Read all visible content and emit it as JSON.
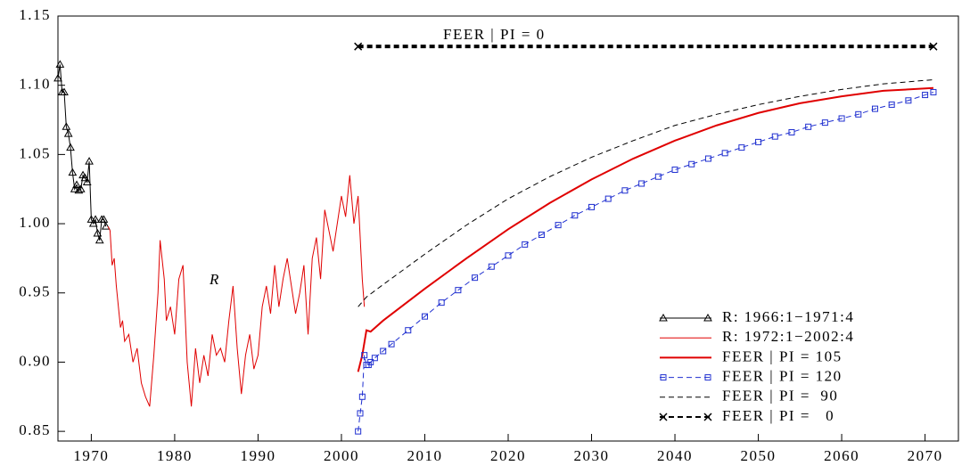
{
  "chart_data": {
    "type": "line",
    "xlim": [
      1966,
      2074
    ],
    "ylim": [
      0.843,
      1.15
    ],
    "xticks": [
      1970,
      1980,
      1990,
      2000,
      2010,
      2020,
      2030,
      2040,
      2050,
      2060,
      2070
    ],
    "yticks": [
      {
        "value": 0.85,
        "label": "0.85"
      },
      {
        "value": 0.9,
        "label": "0.90"
      },
      0.95,
      {
        "value": 1.0,
        "label": "1.00"
      },
      1.05,
      {
        "value": 1.1,
        "label": "1.10"
      },
      1.15
    ],
    "legend": "lower right",
    "annotations": [
      "R",
      "FEER | PI = 0"
    ],
    "series": [
      {
        "name": "R: 1966:1−1971:4",
        "color": "#000000",
        "marker": "triangle",
        "width": 1,
        "dash": false,
        "x": [
          1966,
          1966.25,
          1966.5,
          1966.75,
          1967,
          1967.25,
          1967.5,
          1967.75,
          1968,
          1968.25,
          1968.5,
          1968.75,
          1969,
          1969.25,
          1969.5,
          1969.75,
          1970,
          1970.25,
          1970.5,
          1970.75,
          1971,
          1971.25,
          1971.5,
          1971.75
        ],
        "values": [
          1.105,
          1.115,
          1.095,
          1.095,
          1.07,
          1.065,
          1.055,
          1.037,
          1.025,
          1.028,
          1.024,
          1.025,
          1.035,
          1.033,
          1.03,
          1.045,
          1.003,
          1.0,
          1.003,
          0.993,
          0.988,
          1.003,
          1.003,
          0.998
        ]
      },
      {
        "name": "R: 1972:1−2002:4",
        "color": "#e00000",
        "marker": null,
        "width": 1,
        "dash": false,
        "x": [
          1972,
          1972.25,
          1972.5,
          1972.75,
          1973,
          1973.25,
          1973.5,
          1973.75,
          1974,
          1974.5,
          1975,
          1975.5,
          1976,
          1976.5,
          1977,
          1977.5,
          1978,
          1978.25,
          1978.75,
          1979,
          1979.5,
          1980,
          1980.5,
          1981,
          1981.5,
          1982,
          1982.5,
          1983,
          1983.5,
          1984,
          1984.5,
          1985,
          1985.5,
          1986,
          1986.5,
          1987,
          1987.5,
          1988,
          1988.5,
          1989,
          1989.5,
          1990,
          1990.5,
          1991,
          1991.5,
          1992,
          1992.5,
          1993,
          1993.5,
          1994,
          1994.5,
          1995,
          1995.5,
          1996,
          1996.5,
          1997,
          1997.5,
          1998,
          1998.5,
          1999,
          1999.5,
          2000,
          2000.5,
          2001,
          2001.5,
          2002,
          2002.5,
          2002.75
        ],
        "values": [
          0.998,
          0.995,
          0.97,
          0.975,
          0.955,
          0.94,
          0.925,
          0.93,
          0.915,
          0.92,
          0.9,
          0.91,
          0.885,
          0.875,
          0.868,
          0.905,
          0.95,
          0.988,
          0.96,
          0.93,
          0.94,
          0.92,
          0.96,
          0.97,
          0.9,
          0.868,
          0.91,
          0.885,
          0.905,
          0.89,
          0.92,
          0.905,
          0.91,
          0.9,
          0.93,
          0.955,
          0.91,
          0.877,
          0.905,
          0.92,
          0.895,
          0.905,
          0.94,
          0.955,
          0.935,
          0.97,
          0.94,
          0.96,
          0.975,
          0.955,
          0.935,
          0.95,
          0.97,
          0.92,
          0.975,
          0.99,
          0.96,
          1.01,
          0.995,
          0.98,
          1.0,
          1.02,
          1.005,
          1.035,
          1.0,
          1.02,
          0.96,
          0.94
        ]
      },
      {
        "name": "FEER | PI = 105",
        "color": "#e00000",
        "marker": null,
        "width": 2,
        "dash": false,
        "x": [
          2002,
          2002.5,
          2003,
          2003.5,
          2005,
          2010,
          2015,
          2020,
          2025,
          2030,
          2035,
          2040,
          2045,
          2050,
          2055,
          2060,
          2065,
          2071
        ],
        "values": [
          0.893,
          0.905,
          0.923,
          0.922,
          0.93,
          0.953,
          0.975,
          0.996,
          1.015,
          1.032,
          1.047,
          1.06,
          1.071,
          1.08,
          1.087,
          1.092,
          1.096,
          1.098
        ]
      },
      {
        "name": "FEER | PI = 120",
        "color": "#1f2fd0",
        "marker": "square",
        "width": 1,
        "dash": true,
        "x": [
          2002,
          2002.25,
          2002.5,
          2002.75,
          2003,
          2003.25,
          2003.5,
          2004,
          2005,
          2006,
          2008,
          2010,
          2012,
          2014,
          2016,
          2018,
          2020,
          2022,
          2024,
          2026,
          2028,
          2030,
          2032,
          2034,
          2036,
          2038,
          2040,
          2042,
          2044,
          2046,
          2048,
          2050,
          2052,
          2054,
          2056,
          2058,
          2060,
          2062,
          2064,
          2066,
          2068,
          2070,
          2071
        ],
        "values": [
          0.85,
          0.863,
          0.875,
          0.905,
          0.898,
          0.898,
          0.9,
          0.903,
          0.908,
          0.913,
          0.923,
          0.933,
          0.943,
          0.952,
          0.961,
          0.969,
          0.977,
          0.985,
          0.992,
          0.999,
          1.006,
          1.012,
          1.018,
          1.024,
          1.029,
          1.034,
          1.039,
          1.043,
          1.047,
          1.051,
          1.055,
          1.059,
          1.063,
          1.066,
          1.07,
          1.073,
          1.076,
          1.079,
          1.083,
          1.086,
          1.089,
          1.093,
          1.095
        ]
      },
      {
        "name": "FEER | PI =  90",
        "color": "#000000",
        "marker": null,
        "width": 1,
        "dash": true,
        "x": [
          2002,
          2003,
          2005,
          2010,
          2015,
          2020,
          2025,
          2030,
          2035,
          2040,
          2045,
          2050,
          2055,
          2060,
          2065,
          2071
        ],
        "values": [
          0.94,
          0.947,
          0.956,
          0.978,
          0.999,
          1.018,
          1.034,
          1.048,
          1.06,
          1.071,
          1.079,
          1.086,
          1.092,
          1.097,
          1.101,
          1.104
        ]
      },
      {
        "name": "FEER | PI =   0",
        "color": "#000000",
        "marker": "x",
        "width": 4,
        "dash": true,
        "x": [
          2002,
          2071
        ],
        "values": [
          1.128,
          1.128
        ]
      }
    ]
  }
}
